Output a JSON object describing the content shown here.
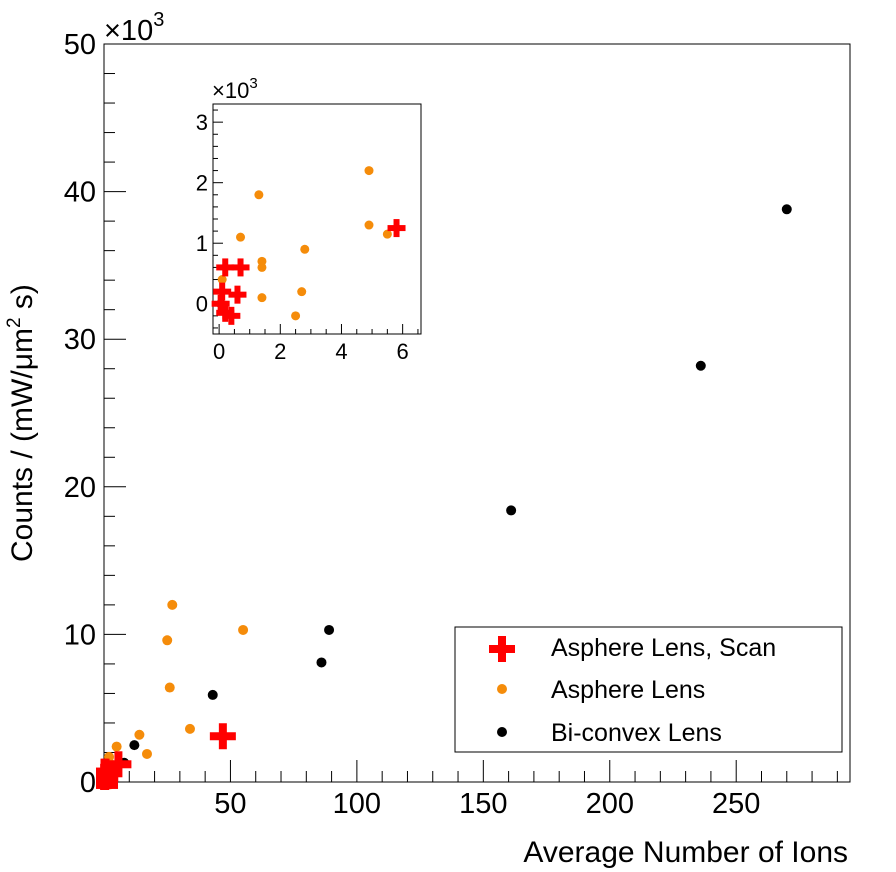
{
  "chart_data": [
    {
      "type": "scatter",
      "xlabel": "Average Number of Ions",
      "ylabel_parts": [
        "Counts / (mW/",
        "μm",
        "2",
        " s)"
      ],
      "y_multiplier": {
        "base": "×10",
        "exponent": "3"
      },
      "xlim": [
        0,
        295
      ],
      "ylim": [
        0,
        50000
      ],
      "x_ticks": [
        50,
        100,
        150,
        200,
        250
      ],
      "y_ticks": [
        0,
        10,
        20,
        30,
        40,
        50
      ],
      "series": [
        {
          "name": "Bi-convex Lens",
          "marker": "circle",
          "color": "#000000",
          "points": [
            [
              270,
              38800
            ],
            [
              236,
              28200
            ],
            [
              161,
              18400
            ],
            [
              89,
              10300
            ],
            [
              86,
              8100
            ],
            [
              43,
              5900
            ],
            [
              12,
              2500
            ],
            [
              8,
              1300
            ],
            [
              4,
              800
            ],
            [
              2,
              400
            ],
            [
              1,
              150
            ]
          ]
        },
        {
          "name": "Asphere Lens",
          "marker": "circle",
          "color": "#f58c0a",
          "points": [
            [
              27,
              12000
            ],
            [
              55,
              10300
            ],
            [
              25,
              9600
            ],
            [
              26,
              6400
            ],
            [
              34,
              3600
            ],
            [
              14,
              3200
            ],
            [
              5,
              2400
            ],
            [
              2,
              1700
            ],
            [
              17,
              1900
            ],
            [
              0.2,
              200
            ],
            [
              0.5,
              500
            ],
            [
              1.2,
              1300
            ],
            [
              1.3,
              700
            ],
            [
              1.3,
              800
            ],
            [
              2.5,
              -150
            ],
            [
              2.6,
              300
            ],
            [
              2.7,
              1200
            ]
          ]
        },
        {
          "name": "Asphere Lens, Scan",
          "marker": "cross",
          "color": "#ff0000",
          "points": [
            [
              47,
              3100
            ],
            [
              5.7,
              1200
            ],
            [
              0.6,
              700
            ],
            [
              0.2,
              700
            ],
            [
              0.5,
              300
            ],
            [
              0.05,
              350
            ],
            [
              0.2,
              -100
            ],
            [
              0.4,
              -200
            ],
            [
              0.1,
              0
            ]
          ]
        }
      ],
      "legend": {
        "position": "bottom-right",
        "entries": [
          "Asphere Lens, Scan",
          "Asphere Lens",
          "Bi-convex Lens"
        ]
      }
    },
    {
      "type": "scatter",
      "role": "inset (zoom of lower-left region)",
      "y_multiplier": {
        "base": "×10",
        "exponent": "3"
      },
      "xlim": [
        -0.2,
        6.6
      ],
      "ylim": [
        -500,
        3300
      ],
      "x_ticks": [
        0,
        2,
        4,
        6
      ],
      "y_ticks": [
        0,
        1,
        2,
        3
      ],
      "series": [
        {
          "name": "Bi-convex Lens",
          "marker": "circle",
          "color": "#000000",
          "points": [
            [
              0.05,
              0
            ]
          ]
        },
        {
          "name": "Asphere Lens",
          "marker": "circle",
          "color": "#f58c0a",
          "points": [
            [
              4.9,
              2200
            ],
            [
              1.3,
              1800
            ],
            [
              0.7,
              1100
            ],
            [
              2.8,
              900
            ],
            [
              1.4,
              700
            ],
            [
              1.4,
              600
            ],
            [
              4.9,
              1300
            ],
            [
              5.5,
              1150
            ],
            [
              2.7,
              200
            ],
            [
              1.4,
              100
            ],
            [
              2.5,
              -200
            ],
            [
              0.1,
              400
            ]
          ]
        },
        {
          "name": "Asphere Lens, Scan",
          "marker": "cross",
          "color": "#ff0000",
          "points": [
            [
              5.8,
              1250
            ],
            [
              0.2,
              600
            ],
            [
              0.7,
              600
            ],
            [
              0.1,
              200
            ],
            [
              0.6,
              150
            ],
            [
              0.2,
              -150
            ],
            [
              0.4,
              -200
            ],
            [
              0.05,
              0.2
            ]
          ]
        }
      ]
    }
  ]
}
